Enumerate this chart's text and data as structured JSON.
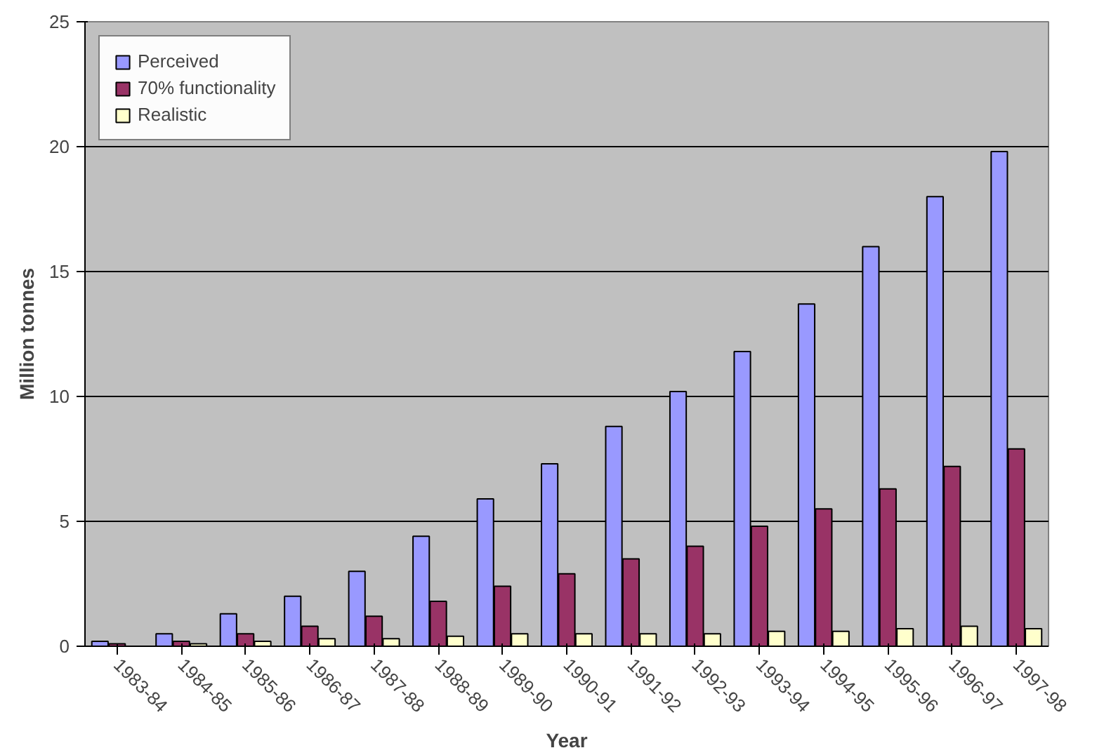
{
  "chart_data": {
    "type": "bar",
    "xlabel": "Year",
    "ylabel": "Million tonnes",
    "categories": [
      "1983-84",
      "1984-85",
      "1985-86",
      "1986-87",
      "1987-88",
      "1988-89",
      "1989-90",
      "1990-91",
      "1991-92",
      "1992-93",
      "1993-94",
      "1994-95",
      "1995-96",
      "1996-97",
      "1997-98"
    ],
    "series": [
      {
        "name": "Perceived",
        "color": "#9999ff",
        "values": [
          0.2,
          0.5,
          1.3,
          2.0,
          3.0,
          4.4,
          5.9,
          7.3,
          8.8,
          10.2,
          11.8,
          13.7,
          16.0,
          18.0,
          19.8
        ]
      },
      {
        "name": "70% functionality",
        "color": "#993366",
        "values": [
          0.1,
          0.2,
          0.5,
          0.8,
          1.2,
          1.8,
          2.4,
          2.9,
          3.5,
          4.0,
          4.8,
          5.5,
          6.3,
          7.2,
          7.9
        ]
      },
      {
        "name": "Realistic",
        "color": "#ffffcc",
        "values": [
          null,
          0.1,
          0.2,
          0.3,
          0.3,
          0.4,
          0.5,
          0.5,
          0.5,
          0.5,
          0.6,
          0.6,
          0.7,
          0.8,
          0.7
        ]
      }
    ],
    "ylim": [
      0,
      25
    ],
    "yticks": [
      0,
      5,
      10,
      15,
      20,
      25
    ],
    "grid": "y",
    "legend": "top left"
  }
}
